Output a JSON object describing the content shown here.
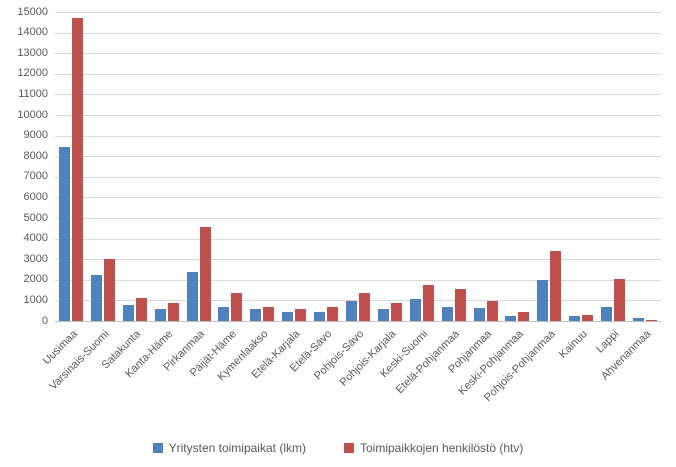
{
  "chart_data": {
    "type": "bar",
    "title": "",
    "xlabel": "",
    "ylabel": "",
    "ylim": [
      0,
      15000
    ],
    "ytick_step": 1000,
    "grid": true,
    "legend_position": "bottom",
    "categories": [
      "Uusimaa",
      "Varsinais-Suomi",
      "Satakunta",
      "Kanta-Häme",
      "Pirkanmaa",
      "Päijät-Häme",
      "Kymenlaakso",
      "Etelä-Karjala",
      "Etelä-Savo",
      "Pohjois-Savo",
      "Pohjois-Karjala",
      "Keski-Suomi",
      "Etelä-Pohjanmaa",
      "Pohjanmaa",
      "Keski-Pohjanmaa",
      "Pohjois-Pohjanmaa",
      "Kainuu",
      "Lappi",
      "Ahvenanmaa"
    ],
    "series": [
      {
        "name": "Yritysten toimipaikat (lkm)",
        "color": "#4F81BD",
        "values": [
          8450,
          2250,
          800,
          590,
          2380,
          680,
          580,
          440,
          420,
          960,
          570,
          1080,
          660,
          620,
          260,
          1980,
          240,
          700,
          160
        ]
      },
      {
        "name": "Toimipaikkojen henkilöstö (htv)",
        "color": "#C0504D",
        "values": [
          14700,
          3000,
          1100,
          890,
          4550,
          1350,
          680,
          600,
          660,
          1360,
          880,
          1740,
          1550,
          990,
          450,
          3390,
          310,
          2040,
          30
        ]
      }
    ]
  },
  "colors": {
    "gridline": "#d9d9d9",
    "axis_line": "#bfbfbf",
    "tick_text": "#595959",
    "background": "#ffffff"
  }
}
